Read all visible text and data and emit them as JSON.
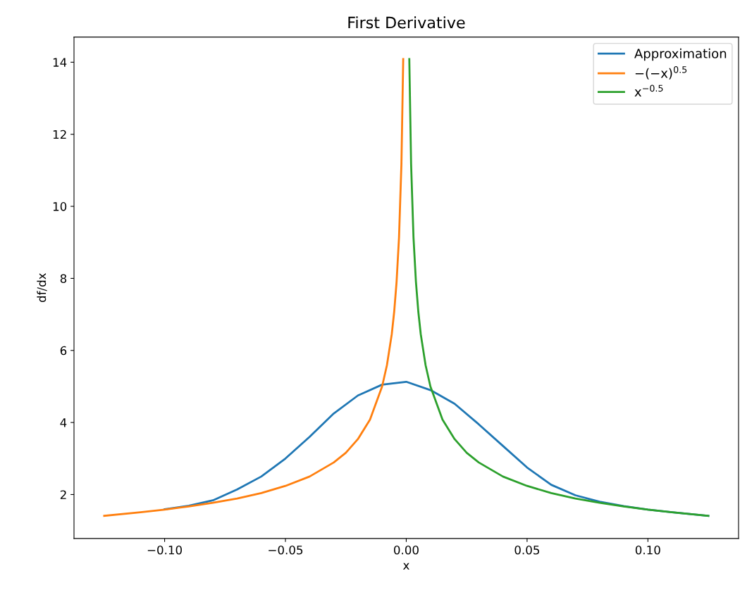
{
  "chart_data": {
    "type": "line",
    "title": "First Derivative",
    "xlabel": "x",
    "ylabel": "df/dx",
    "xlim": [
      -0.1375,
      0.1375
    ],
    "xticks": [
      {
        "value": -0.1,
        "label": "−0.10"
      },
      {
        "value": -0.05,
        "label": "−0.05"
      },
      {
        "value": 0,
        "label": "0.00"
      },
      {
        "value": 0.05,
        "label": "0.05"
      },
      {
        "value": 0.1,
        "label": "0.10"
      }
    ],
    "ylim": [
      0.78,
      14.7
    ],
    "yticks": [
      2,
      4,
      6,
      8,
      10,
      12,
      14
    ],
    "grid": false,
    "legend": "top right",
    "line_style": "solid",
    "marker": "none",
    "series": [
      {
        "name": "Approximation",
        "color": "#1f77b4",
        "x": [
          -0.1,
          -0.09,
          -0.08,
          -0.07,
          -0.06,
          -0.05,
          -0.04,
          -0.03,
          -0.02,
          -0.01,
          0,
          0.01,
          0.02,
          0.03,
          0.04,
          0.05,
          0.06,
          0.07,
          0.08,
          0.09,
          0.1,
          0.11,
          0.125
        ],
        "values": [
          1.59,
          1.69,
          1.84,
          2.14,
          2.5,
          3.0,
          3.6,
          4.25,
          4.75,
          5.05,
          5.13,
          4.9,
          4.52,
          3.95,
          3.35,
          2.75,
          2.27,
          1.98,
          1.8,
          1.68,
          1.58,
          1.51,
          1.41
        ]
      },
      {
        "name": "−(−x)$^{0.5}$",
        "color": "#ff7f0e",
        "x": [
          -0.125,
          -0.11,
          -0.1,
          -0.09,
          -0.08,
          -0.07,
          -0.06,
          -0.05,
          -0.04,
          -0.03,
          -0.025,
          -0.02,
          -0.015,
          -0.01,
          -0.008,
          -0.006,
          -0.005,
          -0.004,
          -0.003,
          -0.002,
          -0.00126
        ],
        "values": [
          1.41,
          1.51,
          1.58,
          1.67,
          1.77,
          1.89,
          2.04,
          2.24,
          2.5,
          2.89,
          3.16,
          3.54,
          4.08,
          5.0,
          5.59,
          6.45,
          7.07,
          7.91,
          9.13,
          11.18,
          14.09
        ]
      },
      {
        "name": "x$^{−0.5}$",
        "color": "#2ca02c",
        "x": [
          0.00126,
          0.002,
          0.003,
          0.004,
          0.005,
          0.006,
          0.008,
          0.01,
          0.015,
          0.02,
          0.025,
          0.03,
          0.04,
          0.05,
          0.06,
          0.07,
          0.08,
          0.09,
          0.1,
          0.11,
          0.125
        ],
        "values": [
          14.09,
          11.18,
          9.13,
          7.91,
          7.07,
          6.45,
          5.59,
          5.0,
          4.08,
          3.54,
          3.16,
          2.89,
          2.5,
          2.24,
          2.04,
          1.89,
          1.77,
          1.67,
          1.58,
          1.51,
          1.41
        ]
      }
    ]
  }
}
